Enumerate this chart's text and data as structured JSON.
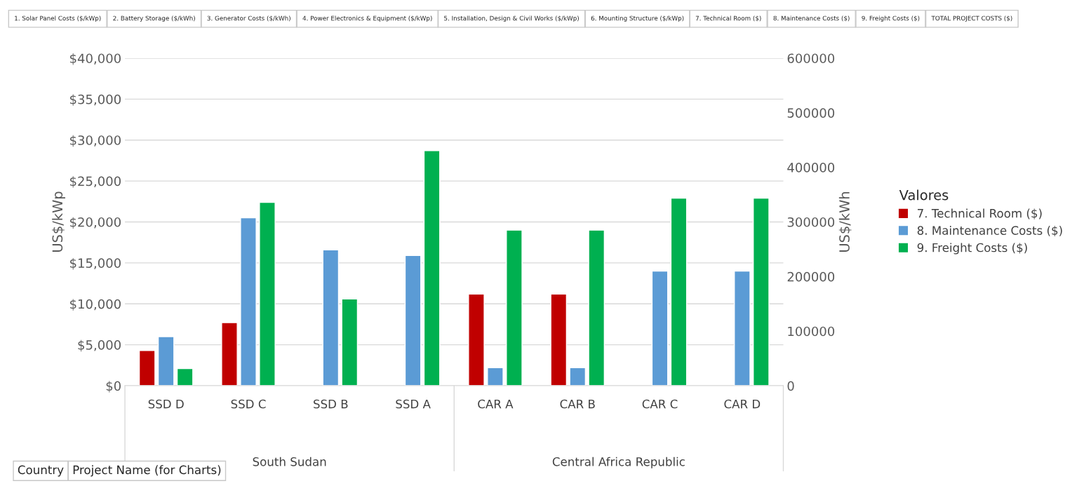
{
  "chart_data": {
    "type": "bar",
    "ylabel": "US$/kWp",
    "y2label": "US$/kWh",
    "legend_title": "Valores",
    "categories": [
      "SSD D",
      "SSD C",
      "SSD B",
      "SSD A",
      "CAR A",
      "CAR B",
      "CAR C",
      "CAR D"
    ],
    "series": [
      {
        "name": "7. Technical Room ($)",
        "color": "#c00000",
        "values": [
          4300,
          7700,
          null,
          null,
          11200,
          11200,
          null,
          null
        ]
      },
      {
        "name": "8. Maintenance Costs ($)",
        "color": "#5b9bd5",
        "values": [
          6000,
          20500,
          16600,
          15900,
          2200,
          2200,
          14000,
          14000
        ]
      },
      {
        "name": "9. Freight Costs ($)",
        "color": "#00b050",
        "values": [
          2100,
          22400,
          10600,
          28700,
          19000,
          19000,
          22900,
          22900
        ]
      }
    ],
    "ylim": [
      0,
      40000
    ],
    "yticks": [
      {
        "value": 0,
        "label": "$0"
      },
      {
        "value": 5000,
        "label": "$5,000"
      },
      {
        "value": 10000,
        "label": "$10,000"
      },
      {
        "value": 15000,
        "label": "$15,000"
      },
      {
        "value": 20000,
        "label": "$20,000"
      },
      {
        "value": 25000,
        "label": "$25,000"
      },
      {
        "value": 30000,
        "label": "$30,000"
      },
      {
        "value": 35000,
        "label": "$35,000"
      },
      {
        "value": 40000,
        "label": "$40,000"
      }
    ],
    "y2lim": [
      0,
      600000
    ],
    "y2ticks": [
      0,
      100000,
      200000,
      300000,
      400000,
      500000,
      600000
    ],
    "grid": "y",
    "legend": "right",
    "annotations": [
      "1. Solar Panel Costs ($/kWp)",
      "2. Battery Storage ($/kWh)",
      "3. Generator Costs ($/kWh)",
      "4. Power Electronics & Equipment ($/kWp)",
      "5. Installation, Design & Civil Works ($/kWp)",
      "6. Mounting Structure ($/kWp)",
      "7. Technical Room ($)",
      "8. Maintenance Costs ($)",
      "9. Freight Costs ($)",
      "TOTAL PROJECT COSTS ($)",
      "Country",
      "Project Name (for Charts)",
      "South Sudan",
      "Central Africa Republic"
    ]
  }
}
